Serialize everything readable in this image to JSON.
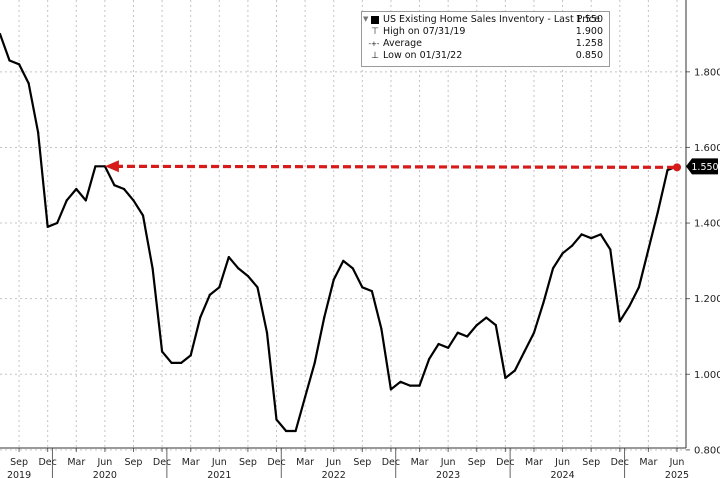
{
  "chart_data": {
    "type": "line",
    "title": "",
    "xlabel": "",
    "ylabel": "",
    "ylim": [
      0.76,
      1.99
    ],
    "y_ticks": [
      "0.800",
      "1.000",
      "1.200",
      "1.400",
      "1.600",
      "1.800"
    ],
    "x_tick_labels": [
      "Sep",
      "Dec",
      "Mar",
      "Jun",
      "Sep",
      "Dec",
      "Mar",
      "Jun",
      "Sep",
      "Dec",
      "Mar",
      "Jun",
      "Sep",
      "Dec",
      "Mar",
      "Jun",
      "Sep",
      "Dec",
      "Mar",
      "Jun",
      "Sep",
      "Dec",
      "Mar",
      "Jun"
    ],
    "year_labels": [
      "2019",
      "2020",
      "2021",
      "2022",
      "2023",
      "2024",
      "2025"
    ],
    "grid": true,
    "legend_position": "top-right",
    "series": [
      {
        "name": "US Existing Home Sales Inventory",
        "color": "#000000",
        "x": [
          "2019-07",
          "2019-08",
          "2019-09",
          "2019-10",
          "2019-11",
          "2019-12",
          "2020-01",
          "2020-02",
          "2020-03",
          "2020-04",
          "2020-05",
          "2020-06",
          "2020-07",
          "2020-08",
          "2020-09",
          "2020-10",
          "2020-11",
          "2020-12",
          "2021-01",
          "2021-02",
          "2021-03",
          "2021-04",
          "2021-05",
          "2021-06",
          "2021-07",
          "2021-08",
          "2021-09",
          "2021-10",
          "2021-11",
          "2021-12",
          "2022-01",
          "2022-02",
          "2022-03",
          "2022-04",
          "2022-05",
          "2022-06",
          "2022-07",
          "2022-08",
          "2022-09",
          "2022-10",
          "2022-11",
          "2022-12",
          "2023-01",
          "2023-02",
          "2023-03",
          "2023-04",
          "2023-05",
          "2023-06",
          "2023-07",
          "2023-08",
          "2023-09",
          "2023-10",
          "2023-11",
          "2023-12",
          "2024-01",
          "2024-02",
          "2024-03",
          "2024-04",
          "2024-05",
          "2024-06",
          "2024-07",
          "2024-08",
          "2024-09",
          "2024-10",
          "2024-11",
          "2024-12",
          "2025-01",
          "2025-02",
          "2025-03",
          "2025-04",
          "2025-05",
          "2025-06"
        ],
        "values": [
          1.9,
          1.83,
          1.82,
          1.77,
          1.64,
          1.39,
          1.4,
          1.46,
          1.49,
          1.46,
          1.55,
          1.55,
          1.5,
          1.49,
          1.46,
          1.42,
          1.28,
          1.06,
          1.03,
          1.03,
          1.05,
          1.15,
          1.21,
          1.23,
          1.31,
          1.28,
          1.26,
          1.23,
          1.11,
          0.88,
          0.85,
          0.85,
          0.94,
          1.03,
          1.15,
          1.25,
          1.3,
          1.28,
          1.23,
          1.22,
          1.12,
          0.96,
          0.98,
          0.97,
          0.97,
          1.04,
          1.08,
          1.07,
          1.11,
          1.1,
          1.13,
          1.15,
          1.13,
          0.99,
          1.01,
          1.06,
          1.11,
          1.19,
          1.28,
          1.32,
          1.34,
          1.37,
          1.36,
          1.37,
          1.33,
          1.14,
          1.18,
          1.23,
          1.33,
          1.43,
          1.54,
          1.55
        ]
      }
    ],
    "last_value_label": "1.550",
    "annotation": {
      "type": "dashed-arrow",
      "color": "#d71a1a",
      "from": {
        "x": "2025-06",
        "y": 1.55
      },
      "to": {
        "x": "2020-06",
        "y": 1.55
      }
    }
  },
  "legend": {
    "entries": [
      {
        "label": "US Existing Home Sales Inventory - Last Price",
        "value": "1.550",
        "icon": "square-swatch"
      },
      {
        "label": "High on 07/31/19",
        "value": "1.900",
        "icon": "high-marker"
      },
      {
        "label": "Average",
        "value": "1.258",
        "icon": "average-marker"
      },
      {
        "label": "Low on 01/31/22",
        "value": "0.850",
        "icon": "low-marker"
      }
    ],
    "symbols": {
      "high": "⊤",
      "average": "-+-",
      "low": "⊥",
      "grip": "▼"
    }
  }
}
